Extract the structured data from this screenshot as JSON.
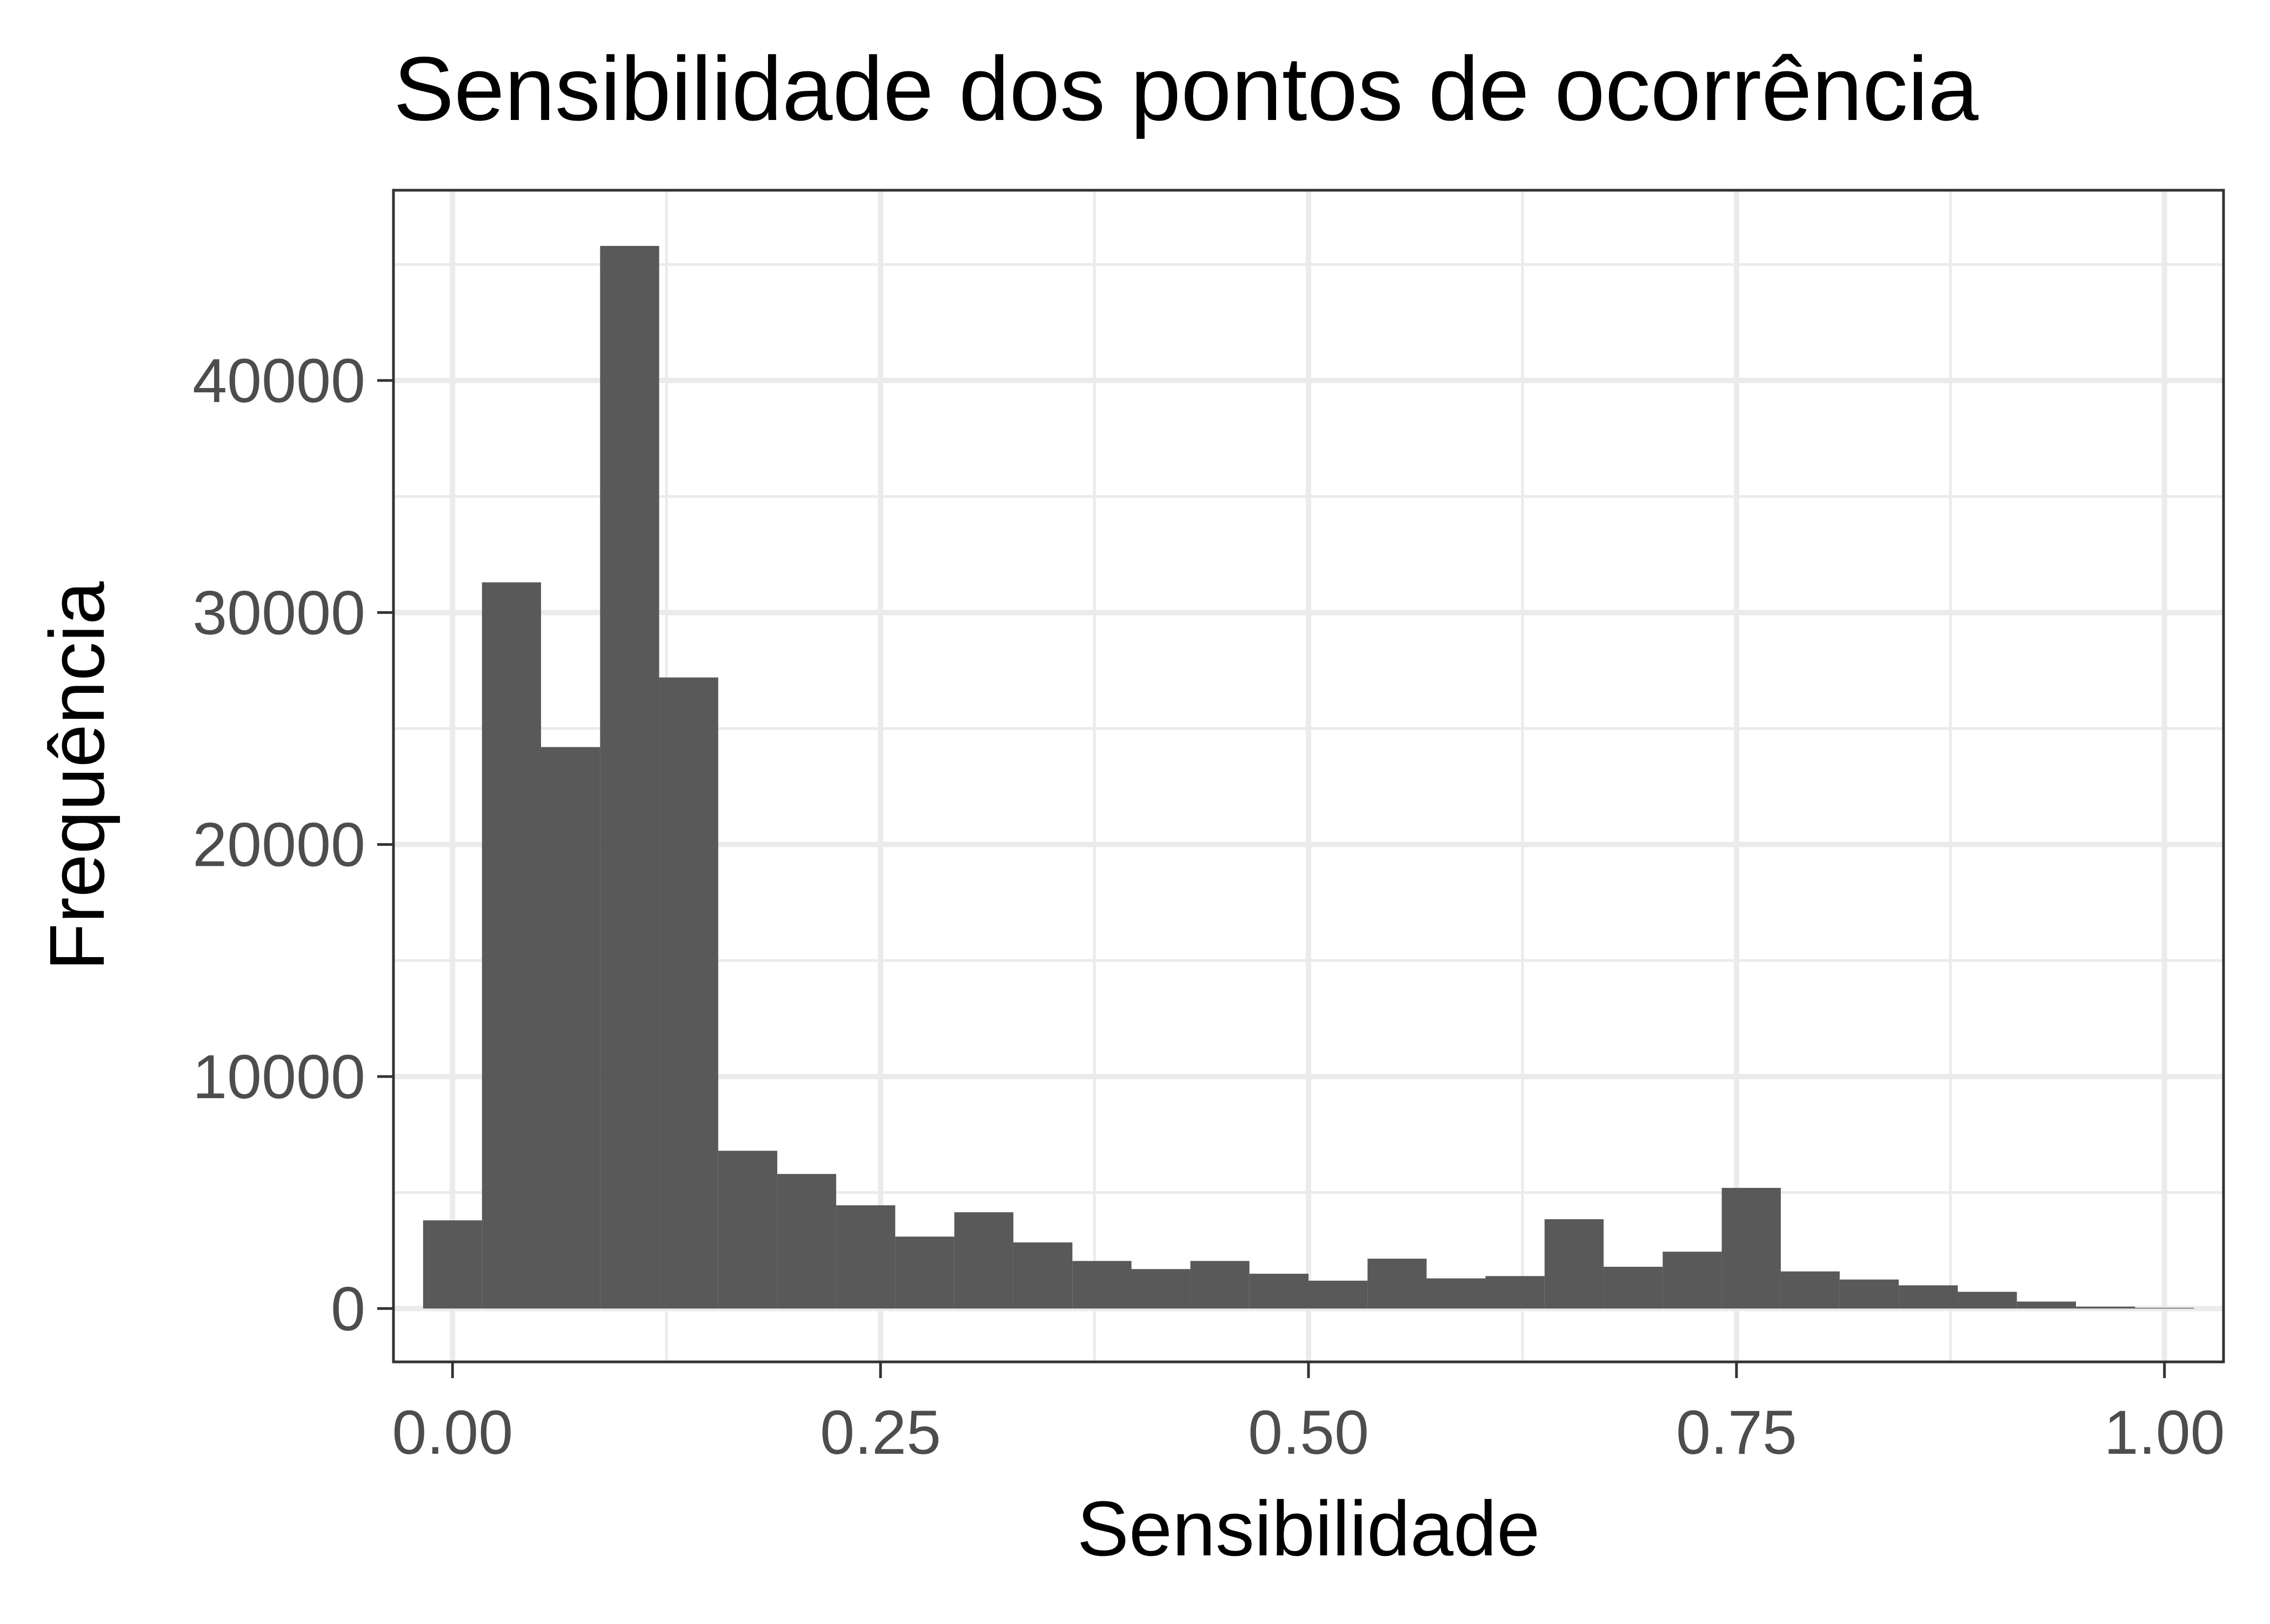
{
  "chart_data": {
    "type": "bar",
    "title": "Sensibilidade dos pontos de ocorrência",
    "xlabel": "Sensibilidade",
    "ylabel": "Frequência",
    "xlim": [
      -0.0345,
      1.0345
    ],
    "ylim": [
      -2300,
      48200
    ],
    "x_ticks": [
      0.0,
      0.25,
      0.5,
      0.75,
      1.0
    ],
    "x_tick_labels": [
      "0.00",
      "0.25",
      "0.50",
      "0.75",
      "1.00"
    ],
    "y_ticks": [
      0,
      10000,
      20000,
      30000,
      40000
    ],
    "y_tick_labels": [
      "0",
      "10000",
      "20000",
      "30000",
      "40000"
    ],
    "grid": true,
    "bin_width": 0.0345,
    "bins": [
      {
        "x_min": -0.0172,
        "x_max": 0.0172,
        "count": 3800
      },
      {
        "x_min": 0.0172,
        "x_max": 0.0517,
        "count": 31300
      },
      {
        "x_min": 0.0517,
        "x_max": 0.0862,
        "count": 24200
      },
      {
        "x_min": 0.0862,
        "x_max": 0.1207,
        "count": 45800
      },
      {
        "x_min": 0.1207,
        "x_max": 0.1552,
        "count": 27200
      },
      {
        "x_min": 0.1552,
        "x_max": 0.1897,
        "count": 6800
      },
      {
        "x_min": 0.1897,
        "x_max": 0.2241,
        "count": 5800
      },
      {
        "x_min": 0.2241,
        "x_max": 0.2586,
        "count": 4450
      },
      {
        "x_min": 0.2586,
        "x_max": 0.2931,
        "count": 3100
      },
      {
        "x_min": 0.2931,
        "x_max": 0.3276,
        "count": 4150
      },
      {
        "x_min": 0.3276,
        "x_max": 0.3621,
        "count": 2850
      },
      {
        "x_min": 0.3621,
        "x_max": 0.3966,
        "count": 2050
      },
      {
        "x_min": 0.3966,
        "x_max": 0.431,
        "count": 1700
      },
      {
        "x_min": 0.431,
        "x_max": 0.4655,
        "count": 2050
      },
      {
        "x_min": 0.4655,
        "x_max": 0.5,
        "count": 1500
      },
      {
        "x_min": 0.5,
        "x_max": 0.5345,
        "count": 1200
      },
      {
        "x_min": 0.5345,
        "x_max": 0.569,
        "count": 2150
      },
      {
        "x_min": 0.569,
        "x_max": 0.6034,
        "count": 1300
      },
      {
        "x_min": 0.6034,
        "x_max": 0.6379,
        "count": 1400
      },
      {
        "x_min": 0.6379,
        "x_max": 0.6724,
        "count": 3850
      },
      {
        "x_min": 0.6724,
        "x_max": 0.7069,
        "count": 1800
      },
      {
        "x_min": 0.7069,
        "x_max": 0.7414,
        "count": 2450
      },
      {
        "x_min": 0.7414,
        "x_max": 0.7759,
        "count": 5200
      },
      {
        "x_min": 0.7759,
        "x_max": 0.8103,
        "count": 1600
      },
      {
        "x_min": 0.8103,
        "x_max": 0.8448,
        "count": 1250
      },
      {
        "x_min": 0.8448,
        "x_max": 0.8793,
        "count": 1000
      },
      {
        "x_min": 0.8793,
        "x_max": 0.9138,
        "count": 720
      },
      {
        "x_min": 0.9138,
        "x_max": 0.9483,
        "count": 300
      },
      {
        "x_min": 0.9483,
        "x_max": 0.9828,
        "count": 80
      },
      {
        "x_min": 0.9828,
        "x_max": 1.0172,
        "count": 30
      }
    ],
    "colors": {
      "bar_fill": "#595959",
      "panel_border": "#333333",
      "grid_major": "#ebebeb",
      "grid_minor": "#ebebeb",
      "tick_text": "#4d4d4d",
      "title_text": "#000000"
    }
  }
}
